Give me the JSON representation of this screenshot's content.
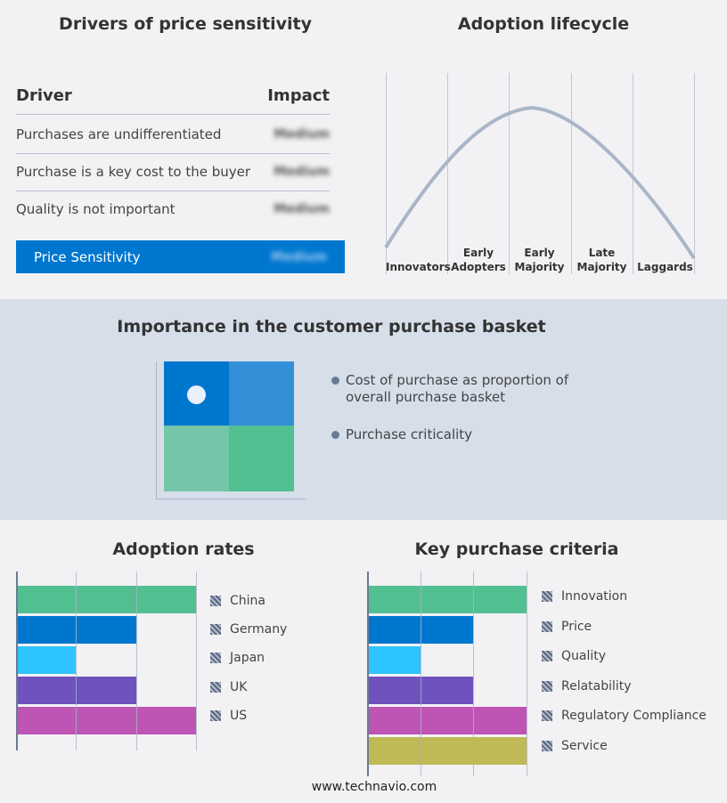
{
  "drivers": {
    "title": "Drivers of price sensitivity",
    "col_driver": "Driver",
    "col_impact": "Impact",
    "rows": [
      {
        "driver": "Purchases are undifferentiated",
        "impact": "Medium"
      },
      {
        "driver": "Purchase is a key cost to the buyer",
        "impact": "Medium"
      },
      {
        "driver": "Quality is not important",
        "impact": "Medium"
      }
    ],
    "summary": {
      "label": "Price Sensitivity",
      "impact": "Medium"
    }
  },
  "lifecycle": {
    "title": "Adoption lifecycle",
    "stages": [
      "Innovators",
      "Early Adopters",
      "Early Majority",
      "Late Majority",
      "Laggards"
    ]
  },
  "basket": {
    "title": "Importance in the customer purchase basket",
    "legend": [
      "Cost of purchase as proportion of overall purchase basket",
      "Purchase criticality"
    ],
    "colors": [
      "#0077cf",
      "#3390d8",
      "#75c6a9",
      "#52bf91"
    ]
  },
  "footer": "www.technavio.com",
  "chart_data": [
    {
      "type": "bar",
      "title": "Adoption rates",
      "categories": [
        "China",
        "Germany",
        "Japan",
        "UK",
        "US"
      ],
      "values": [
        3,
        2,
        1,
        2,
        3
      ],
      "xlim": [
        0,
        3
      ],
      "grid": true,
      "legend": "right",
      "colors": [
        "#52bf91",
        "#0077cf",
        "#2ec4ff",
        "#6f52bd",
        "#be55b5"
      ]
    },
    {
      "type": "bar",
      "title": "Key purchase criteria",
      "categories": [
        "Innovation",
        "Price",
        "Quality",
        "Relatability",
        "Regulatory Compliance",
        "Service"
      ],
      "values": [
        3,
        2,
        1,
        2,
        3,
        3
      ],
      "xlim": [
        0,
        3
      ],
      "grid": true,
      "legend": "right",
      "colors": [
        "#52bf91",
        "#0077cf",
        "#2ec4ff",
        "#6f52bd",
        "#be55b5",
        "#bfba55"
      ]
    }
  ]
}
